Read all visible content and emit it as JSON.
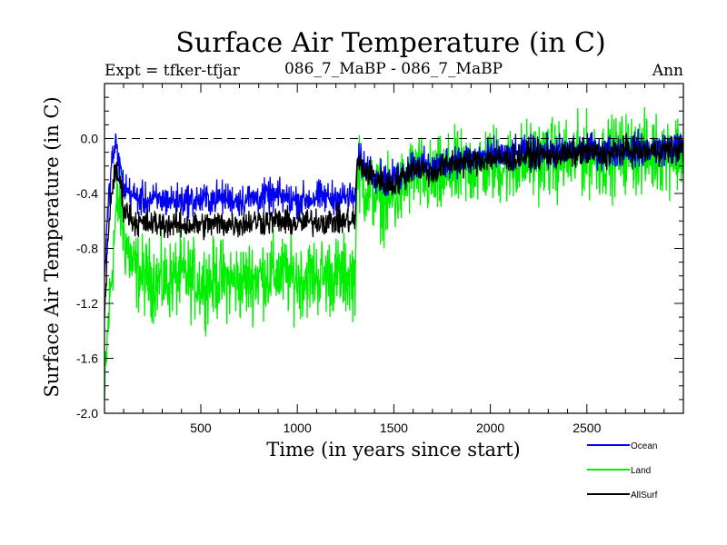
{
  "chart_data": {
    "type": "line",
    "title": "Surface Air Temperature (in C)",
    "subtitle_left": "Expt = tfker-tfjar",
    "subtitle_center": "086_7_MaBP - 086_7_MaBP",
    "subtitle_right": "Ann",
    "xlabel": "Time (in years since start)",
    "ylabel": "Surface Air Temperature (in C)",
    "xlim": [
      1,
      3000
    ],
    "ylim": [
      -2.0,
      0.4
    ],
    "xticks": [
      500,
      1000,
      1500,
      2000,
      2500
    ],
    "xtick_labels": [
      "500",
      "1000",
      "1500",
      "2000",
      "2500"
    ],
    "yticks": [
      -2.0,
      -1.6,
      -1.2,
      -0.8,
      -0.4,
      0.0
    ],
    "ytick_labels": [
      "-2.0",
      "-1.6",
      "-1.2",
      "-0.8",
      "-0.4",
      "0.0"
    ],
    "reference_line": 0.0,
    "grid": false,
    "legend_position": "bottom-right, below plot",
    "series": [
      {
        "name": "Land",
        "color": "#00ee00",
        "x": [
          1,
          20,
          40,
          60,
          80,
          100,
          150,
          200,
          300,
          400,
          500,
          600,
          700,
          800,
          900,
          1000,
          1100,
          1200,
          1300,
          1310,
          1350,
          1400,
          1450,
          1500,
          1550,
          1600,
          1700,
          1800,
          1900,
          2000,
          2100,
          2200,
          2300,
          2400,
          2500,
          2600,
          2700,
          2800,
          2900,
          3000
        ],
        "values": [
          -1.9,
          -1.35,
          -0.95,
          -0.55,
          -0.45,
          -0.7,
          -0.95,
          -1.0,
          -1.05,
          -1.0,
          -1.05,
          -1.02,
          -1.05,
          -1.0,
          -0.98,
          -1.02,
          -1.0,
          -1.0,
          -1.0,
          -0.25,
          -0.35,
          -0.4,
          -0.45,
          -0.45,
          -0.35,
          -0.25,
          -0.32,
          -0.25,
          -0.22,
          -0.18,
          -0.2,
          -0.15,
          -0.15,
          -0.15,
          -0.12,
          -0.15,
          -0.1,
          -0.12,
          -0.1,
          -0.1
        ]
      },
      {
        "name": "Ocean",
        "color": "#0000ee",
        "x": [
          1,
          20,
          40,
          60,
          80,
          100,
          150,
          200,
          300,
          400,
          500,
          600,
          700,
          800,
          900,
          1000,
          1100,
          1200,
          1300,
          1310,
          1350,
          1400,
          1450,
          1500,
          1550,
          1600,
          1700,
          1800,
          1900,
          2000,
          2100,
          2200,
          2300,
          2400,
          2500,
          2600,
          2700,
          2800,
          2900,
          3000
        ],
        "values": [
          -1.0,
          -0.5,
          -0.15,
          -0.05,
          -0.2,
          -0.35,
          -0.42,
          -0.45,
          -0.45,
          -0.45,
          -0.45,
          -0.43,
          -0.45,
          -0.43,
          -0.42,
          -0.45,
          -0.43,
          -0.43,
          -0.43,
          -0.15,
          -0.2,
          -0.25,
          -0.3,
          -0.3,
          -0.25,
          -0.18,
          -0.22,
          -0.15,
          -0.15,
          -0.12,
          -0.13,
          -0.1,
          -0.1,
          -0.1,
          -0.08,
          -0.1,
          -0.07,
          -0.08,
          -0.07,
          -0.07
        ]
      },
      {
        "name": "AllSurf",
        "color": "#000000",
        "x": [
          1,
          20,
          40,
          60,
          80,
          100,
          150,
          200,
          300,
          400,
          500,
          600,
          700,
          800,
          900,
          1000,
          1100,
          1200,
          1300,
          1310,
          1350,
          1400,
          1450,
          1500,
          1550,
          1600,
          1700,
          1800,
          1900,
          2000,
          2100,
          2200,
          2300,
          2400,
          2500,
          2600,
          2700,
          2800,
          2900,
          3000
        ],
        "values": [
          -1.3,
          -0.7,
          -0.35,
          -0.25,
          -0.3,
          -0.5,
          -0.6,
          -0.62,
          -0.62,
          -0.63,
          -0.63,
          -0.62,
          -0.62,
          -0.6,
          -0.6,
          -0.62,
          -0.6,
          -0.6,
          -0.6,
          -0.17,
          -0.23,
          -0.28,
          -0.33,
          -0.33,
          -0.28,
          -0.2,
          -0.25,
          -0.18,
          -0.17,
          -0.14,
          -0.15,
          -0.12,
          -0.12,
          -0.12,
          -0.1,
          -0.12,
          -0.08,
          -0.1,
          -0.08,
          -0.08
        ]
      }
    ],
    "legend_order": [
      "Ocean",
      "Land",
      "AllSurf"
    ]
  }
}
